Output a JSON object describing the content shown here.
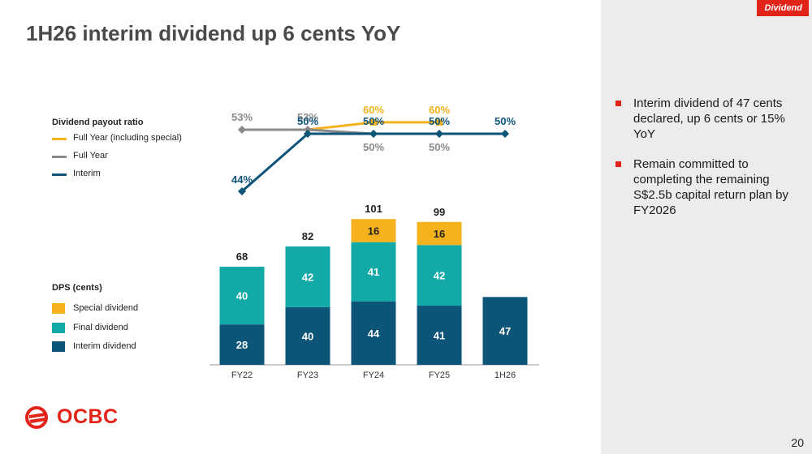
{
  "header": {
    "section_tag": "Dividend",
    "title": "1H26 interim dividend up 6 cents YoY"
  },
  "legends": {
    "payout": {
      "title": "Dividend payout ratio",
      "items": [
        {
          "label": "Full Year (including special)",
          "color": "#f5b21c"
        },
        {
          "label": "Full Year",
          "color": "#8a8a8a"
        },
        {
          "label": "Interim",
          "color": "#0d5479"
        }
      ]
    },
    "dps": {
      "title": "DPS (cents)",
      "items": [
        {
          "label": "Special dividend",
          "color": "#f5b21c"
        },
        {
          "label": "Final dividend",
          "color": "#12a9a6"
        },
        {
          "label": "Interim dividend",
          "color": "#0d5479"
        }
      ]
    }
  },
  "bullets": [
    "Interim dividend of 47 cents declared, up 6 cents or 15% YoY",
    "Remain committed to completing the remaining S$2.5b capital return plan by FY2026"
  ],
  "page_number": "20",
  "logo": {
    "text": "OCBC",
    "color": "#e2231a"
  },
  "chart_data": [
    {
      "type": "bar",
      "stacked": true,
      "categories": [
        "FY22",
        "FY23",
        "FY24",
        "FY25",
        "1H26"
      ],
      "series": [
        {
          "name": "Interim dividend",
          "color": "#0d5479",
          "values": [
            28,
            40,
            44,
            41,
            47
          ]
        },
        {
          "name": "Final dividend",
          "color": "#12a9a6",
          "values": [
            40,
            42,
            41,
            42,
            null
          ]
        },
        {
          "name": "Special dividend",
          "color": "#f5b21c",
          "values": [
            null,
            null,
            16,
            16,
            null
          ]
        }
      ],
      "totals": [
        68,
        82,
        101,
        99,
        null
      ],
      "value_labels": {
        "series": [
          [
            "28",
            "40",
            "44",
            "41",
            "47"
          ],
          [
            "40",
            "42",
            "41",
            "42",
            ""
          ],
          [
            "",
            "",
            "16",
            "16",
            ""
          ]
        ],
        "totals": [
          "68",
          "82",
          "101",
          "99",
          ""
        ]
      }
    },
    {
      "type": "line",
      "categories": [
        "FY22",
        "FY23",
        "FY24",
        "FY25",
        "1H26"
      ],
      "series": [
        {
          "name": "Full Year (including special)",
          "color": "#f5b21c",
          "values": [
            null,
            53,
            60,
            60,
            null
          ],
          "labels": [
            "",
            "",
            "60%",
            "60%",
            ""
          ]
        },
        {
          "name": "Full Year",
          "color": "#8a8a8a",
          "values": [
            53,
            53,
            50,
            50,
            null
          ],
          "labels": [
            "53%",
            "53%",
            "50%",
            "50%",
            ""
          ]
        },
        {
          "name": "Interim",
          "color": "#0d5479",
          "values": [
            44,
            50,
            50,
            50,
            50
          ],
          "labels": [
            "44%",
            "50%",
            "50%",
            "50%",
            "50%"
          ]
        }
      ]
    }
  ]
}
